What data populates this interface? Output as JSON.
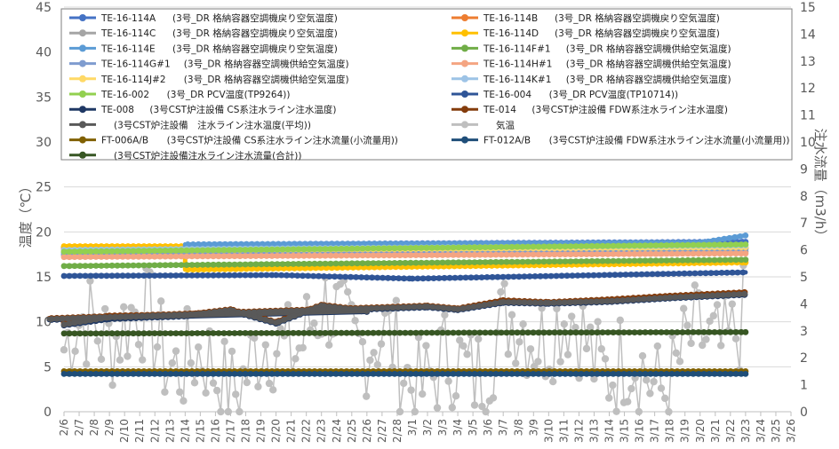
{
  "chart_data": {
    "type": "line",
    "title": "",
    "ylabel": "温度（℃）",
    "y2label": "注水流量（m3/h）",
    "ylim": [
      0,
      45
    ],
    "y2lim": [
      0,
      15
    ],
    "yticks": [
      "0",
      "5",
      "10",
      "15",
      "20",
      "25",
      "30",
      "35",
      "40",
      "45"
    ],
    "y2ticks": [
      "0",
      "1",
      "2",
      "3",
      "4",
      "5",
      "6",
      "7",
      "8",
      "9",
      "10",
      "11",
      "12",
      "13",
      "14",
      "15"
    ],
    "xticks": [
      "2/6",
      "2/7",
      "2/8",
      "2/9",
      "2/10",
      "2/11",
      "2/12",
      "2/13",
      "2/14",
      "2/15",
      "2/16",
      "2/17",
      "2/18",
      "2/19",
      "2/20",
      "2/21",
      "2/22",
      "2/23",
      "2/24",
      "2/25",
      "2/26",
      "2/27",
      "2/28",
      "3/1",
      "3/2",
      "3/3",
      "3/4",
      "3/5",
      "3/6",
      "3/7",
      "3/8",
      "3/9",
      "3/10",
      "3/11",
      "3/12",
      "3/13",
      "3/14",
      "3/15",
      "3/16",
      "3/17",
      "3/18",
      "3/19",
      "3/20",
      "3/21",
      "3/22",
      "3/23",
      "3/24",
      "3/25",
      "3/26"
    ],
    "grid": true,
    "legend_position": "top",
    "series": [
      {
        "tag": "TE-16-114A",
        "desc": "(3号_DR 格納容器空調機戻り空気温度)",
        "color": "#4472C4",
        "axis": "left",
        "x": [
          "2/6",
          "2/14",
          "2/14",
          "3/23"
        ],
        "y": [
          18.3,
          18.3,
          18.6,
          18.9
        ]
      },
      {
        "tag": "TE-16-114B",
        "desc": "(3号_DR 格納容器空調機戻り空気温度)",
        "color": "#ED7D31",
        "axis": "left",
        "x": [
          "2/6",
          "3/23"
        ],
        "y": [
          18.1,
          18.2
        ]
      },
      {
        "tag": "TE-16-114C",
        "desc": "(3号_DR 格納容器空調機戻り空気温度)",
        "color": "#A5A5A5",
        "axis": "left",
        "x": [
          "2/6",
          "3/23"
        ],
        "y": [
          17.4,
          17.8
        ]
      },
      {
        "tag": "TE-16-114D",
        "desc": "(3号_DR 格納容器空調機戻り空気温度)",
        "color": "#FFC000",
        "axis": "left",
        "x": [
          "2/6",
          "2/14",
          "2/14",
          "3/23"
        ],
        "y": [
          18.4,
          18.4,
          15.8,
          16.6
        ]
      },
      {
        "tag": "TE-16-114E",
        "desc": "(3号_DR 格納容器空調機戻り空気温度)",
        "color": "#5B9BD5",
        "axis": "left",
        "x": [
          "2/6",
          "2/14",
          "2/14",
          "3/20",
          "3/23"
        ],
        "y": [
          17.7,
          17.7,
          18.6,
          18.8,
          19.6
        ]
      },
      {
        "tag": "TE-16-114F#1",
        "desc": "(3号_DR 格納容器空調機供給空気温度)",
        "color": "#70AD47",
        "axis": "left",
        "x": [
          "2/6",
          "3/23"
        ],
        "y": [
          16.2,
          16.9
        ]
      },
      {
        "tag": "TE-16-114G#1",
        "desc": "(3号_DR 格納容器空調機供給空気温度)",
        "color": "#7F9CCF",
        "axis": "left",
        "x": [
          "2/6",
          "3/23"
        ],
        "y": [
          17.5,
          18.1
        ]
      },
      {
        "tag": "TE-16-114H#1",
        "desc": "(3号_DR 格納容器空調機供給空気温度)",
        "color": "#F4A582",
        "axis": "left",
        "x": [
          "2/6",
          "3/23"
        ],
        "y": [
          17.2,
          17.6
        ]
      },
      {
        "tag": "TE-16-114J#2",
        "desc": "(3号_DR 格納容器空調機供給空気温度)",
        "color": "#FFD966",
        "axis": "left",
        "x": [
          "2/6",
          "3/23"
        ],
        "y": [
          17.9,
          18.3
        ]
      },
      {
        "tag": "TE-16-114K#1",
        "desc": "(3号_DR 格納容器空調機供給空気温度)",
        "color": "#9DC3E6",
        "axis": "left",
        "x": [
          "2/6",
          "3/23"
        ],
        "y": [
          18.0,
          18.5
        ]
      },
      {
        "tag": "TE-16-002",
        "desc": "(3号_DR PCV温度(TP9264))",
        "color": "#92D050",
        "axis": "left",
        "x": [
          "2/6",
          "3/23"
        ],
        "y": [
          17.8,
          18.6
        ]
      },
      {
        "tag": "TE-16-004",
        "desc": "(3号_DR PCV温度(TP10714))",
        "color": "#2F5597",
        "axis": "left",
        "x": [
          "2/6",
          "2/20",
          "3/1",
          "3/23"
        ],
        "y": [
          15.1,
          15.2,
          14.8,
          15.5
        ]
      },
      {
        "tag": "TE-008",
        "desc": "(3号CST炉注設備 CS系注水ライン注水温度)",
        "color": "#1F3864",
        "axis": "left",
        "x": [
          "2/6",
          "2/9",
          "2/14",
          "2/17",
          "2/20",
          "2/23",
          "2/26",
          "2/29",
          "3/2",
          "3/4",
          "3/7",
          "3/10",
          "3/14",
          "3/18",
          "3/23"
        ],
        "y": [
          9.6,
          10.3,
          10.6,
          11.2,
          9.8,
          11.7,
          11.1,
          10.2,
          11.6,
          11.3,
          12.1,
          12.0,
          12.2,
          12.6,
          13.0
        ]
      },
      {
        "tag": "TE-014",
        "desc": "(3号CST炉注設備 FDW系注水ライン注水温度)",
        "color": "#843C0C",
        "axis": "left",
        "x": [
          "2/6",
          "2/9",
          "2/14",
          "2/17",
          "2/20",
          "2/23",
          "2/26",
          "2/29",
          "3/2",
          "3/4",
          "3/7",
          "3/10",
          "3/14",
          "3/18",
          "3/23"
        ],
        "y": [
          9.9,
          10.7,
          10.8,
          11.4,
          10.0,
          11.9,
          11.3,
          10.4,
          11.8,
          11.5,
          12.4,
          12.2,
          12.5,
          12.9,
          13.3
        ]
      },
      {
        "tag": "",
        "desc": "(3号CST炉注設備　注水ライン注水温度(平均))",
        "color": "#595959",
        "axis": "left",
        "x": [
          "2/6",
          "2/9",
          "2/14",
          "2/17",
          "2/20",
          "2/23",
          "2/26",
          "2/29",
          "3/2",
          "3/4",
          "3/7",
          "3/10",
          "3/14",
          "3/18",
          "3/23"
        ],
        "y": [
          9.7,
          10.5,
          10.7,
          11.3,
          9.9,
          11.8,
          11.2,
          10.3,
          11.7,
          11.4,
          12.2,
          12.1,
          12.3,
          12.7,
          13.1
        ]
      },
      {
        "tag": "",
        "desc": "気温",
        "color": "#BFBFBF",
        "axis": "left",
        "x": [],
        "y": []
      },
      {
        "tag": "FT-006A/B",
        "desc": "(3号CST炉注設備 CS系注水ライン注水流量(小流量用))",
        "color": "#806000",
        "axis": "right",
        "x": [
          "2/6",
          "3/23"
        ],
        "y": [
          1.5,
          1.5
        ]
      },
      {
        "tag": "FT-012A/B",
        "desc": "(3号CST炉注設備 FDW系注水ライン注水流量(小流量用))",
        "color": "#1F4E79",
        "axis": "right",
        "x": [
          "2/6",
          "3/23"
        ],
        "y": [
          1.4,
          1.4
        ]
      },
      {
        "tag": "",
        "desc": "(3号CST炉注設備注水ライン注水流量(合計))",
        "color": "#375623",
        "axis": "right",
        "x": [
          "2/6",
          "3/23"
        ],
        "y": [
          2.9,
          2.95
        ]
      }
    ]
  }
}
